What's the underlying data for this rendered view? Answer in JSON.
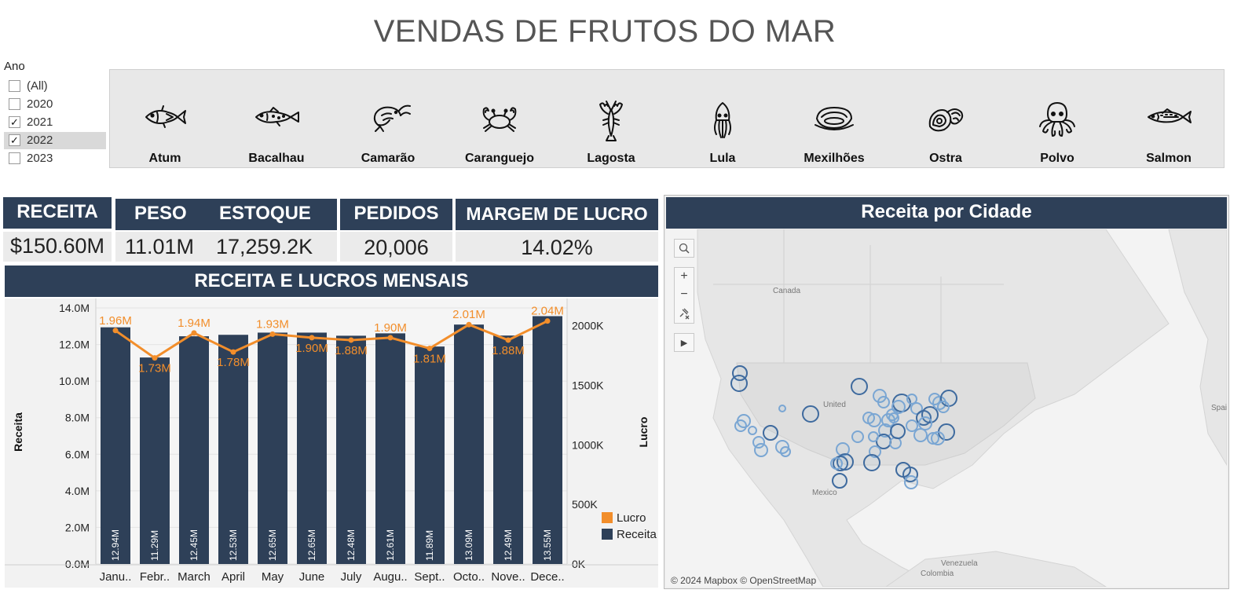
{
  "title": "VENDAS DE FRUTOS DO MAR",
  "filter": {
    "label": "Ano",
    "items": [
      {
        "label": "(All)",
        "checked": false,
        "selected": false
      },
      {
        "label": "2020",
        "checked": false,
        "selected": false
      },
      {
        "label": "2021",
        "checked": true,
        "selected": false
      },
      {
        "label": "2022",
        "checked": true,
        "selected": true
      },
      {
        "label": "2023",
        "checked": false,
        "selected": false
      }
    ]
  },
  "categories": [
    {
      "label": "Atum",
      "icon": "tuna-icon"
    },
    {
      "label": "Bacalhau",
      "icon": "cod-icon"
    },
    {
      "label": "Camarão",
      "icon": "shrimp-icon"
    },
    {
      "label": "Caranguejo",
      "icon": "crab-icon"
    },
    {
      "label": "Lagosta",
      "icon": "lobster-icon"
    },
    {
      "label": "Lula",
      "icon": "squid-icon"
    },
    {
      "label": "Mexilhões",
      "icon": "mussel-icon"
    },
    {
      "label": "Ostra",
      "icon": "oyster-icon"
    },
    {
      "label": "Polvo",
      "icon": "octopus-icon"
    },
    {
      "label": "Salmon",
      "icon": "salmon-icon"
    }
  ],
  "kpis": {
    "receita": {
      "label": "RECEITA",
      "value": "$150.60M"
    },
    "peso": {
      "label": "PESO",
      "value": "11.01M"
    },
    "estoque": {
      "label": "ESTOQUE",
      "value": "17,259.2K"
    },
    "pedidos": {
      "label": "PEDIDOS",
      "value": "20,006"
    },
    "margem": {
      "label": "MARGEM DE LUCRO",
      "value": "14.02%"
    }
  },
  "chart": {
    "title": "RECEITA E LUCROS MENSAIS"
  },
  "chart_data": {
    "type": "bar",
    "title": "RECEITA E LUCROS MENSAIS",
    "categories": [
      "Janu..",
      "Febr..",
      "March",
      "April",
      "May",
      "June",
      "July",
      "Augu..",
      "Sept..",
      "Octo..",
      "Nove..",
      "Dece.."
    ],
    "series": [
      {
        "name": "Receita",
        "type": "bar",
        "color": "#2e4058",
        "values": [
          12.94,
          11.29,
          12.45,
          12.53,
          12.65,
          12.65,
          12.48,
          12.61,
          11.89,
          13.09,
          12.49,
          13.55
        ],
        "labels": [
          "12.94M",
          "11.29M",
          "12.45M",
          "12.53M",
          "12.65M",
          "12.65M",
          "12.48M",
          "12.61M",
          "11.89M",
          "13.09M",
          "12.49M",
          "13.55M"
        ]
      },
      {
        "name": "Lucro",
        "type": "line",
        "color": "#f28e2b",
        "values": [
          1960,
          1730,
          1940,
          1780,
          1930,
          1900,
          1880,
          1900,
          1810,
          2010,
          1880,
          2040
        ],
        "labels": [
          "1.96M",
          "1.73M",
          "1.94M",
          "1.78M",
          "1.93M",
          "1.90M",
          "1.88M",
          "1.90M",
          "1.81M",
          "2.01M",
          "1.88M",
          "2.04M"
        ]
      }
    ],
    "ylabel": "Receita",
    "ylim": [
      0,
      14
    ],
    "yticks": [
      "0.0M",
      "2.0M",
      "4.0M",
      "6.0M",
      "8.0M",
      "10.0M",
      "12.0M",
      "14.0M"
    ],
    "y2label": "Lucro",
    "y2lim": [
      0,
      2150
    ],
    "y2ticks": [
      "0K",
      "500K",
      "1000K",
      "1500K",
      "2000K"
    ],
    "legend": {
      "position": "right",
      "entries": [
        "Lucro",
        "Receita"
      ]
    },
    "grid": true
  },
  "map": {
    "title": "Receita por Cidade",
    "attribution": "© 2024 Mapbox © OpenStreetMap",
    "labels": {
      "canada": "Canada",
      "us": "United",
      "mexico": "Mexico",
      "venezuela": "Venezuela",
      "colombia": "Colombia",
      "spain": "Spai"
    }
  }
}
